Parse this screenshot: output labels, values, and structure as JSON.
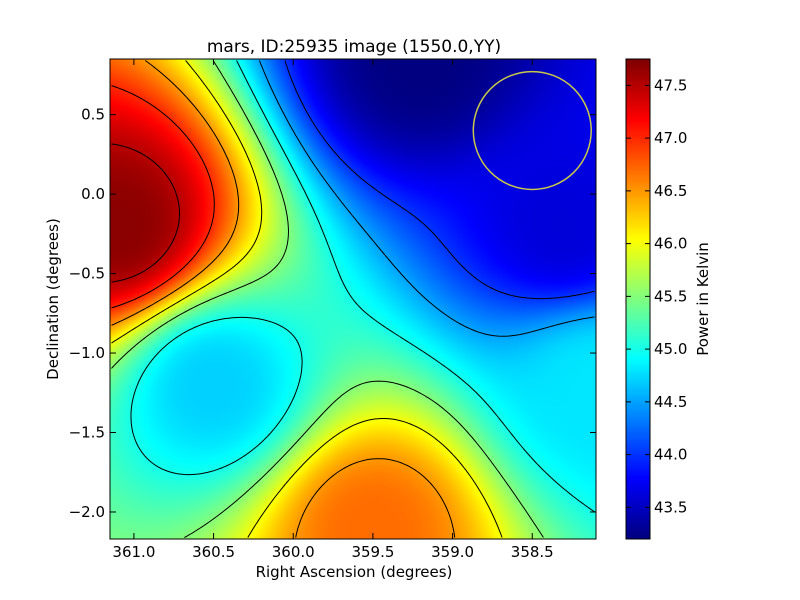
{
  "chart_data": {
    "type": "heatmap",
    "title": "mars, ID:25935 image (1550.0,YY)",
    "xlabel": "Right Ascension (degrees)",
    "ylabel": "Declination (degrees)",
    "xlim": [
      361.15,
      358.1
    ],
    "ylim": [
      -2.17,
      0.85
    ],
    "xticks": [
      361.0,
      360.5,
      360.0,
      359.5,
      359.0,
      358.5
    ],
    "xtick_labels": [
      "361.0",
      "360.5",
      "360.0",
      "359.5",
      "359.0",
      "358.5"
    ],
    "yticks": [
      0.5,
      0.0,
      -0.5,
      -1.0,
      -1.5,
      -2.0
    ],
    "ytick_labels": [
      "0.5",
      "0.0",
      "−0.5",
      "−1.0",
      "−1.5",
      "−2.0"
    ],
    "colorbar": {
      "label": "Power in Kelvin",
      "range": [
        43.2,
        47.75
      ],
      "ticks": [
        43.5,
        44.0,
        44.5,
        45.0,
        45.5,
        46.0,
        46.5,
        47.0,
        47.5
      ],
      "tick_labels": [
        "43.5",
        "44.0",
        "44.5",
        "45.0",
        "45.5",
        "46.0",
        "46.5",
        "47.0",
        "47.5"
      ],
      "colormap": "jet"
    },
    "field_peaks": [
      {
        "ra": 361.1,
        "dec": -0.2,
        "power": 47.7
      },
      {
        "ra": 359.2,
        "dec": 0.85,
        "power": 43.2
      },
      {
        "ra": 359.5,
        "dec": -2.1,
        "power": 46.7
      },
      {
        "ra": 360.5,
        "dec": -1.2,
        "power": 44.7
      },
      {
        "ra": 358.3,
        "dec": -0.2,
        "power": 43.6
      },
      {
        "ra": 358.1,
        "dec": -1.2,
        "power": 44.8
      }
    ],
    "contour_levels": [
      44.0,
      44.5,
      45.0,
      45.5,
      46.0,
      46.5,
      47.0,
      47.5
    ],
    "beam_circle": {
      "ra": 358.5,
      "dec": 0.4,
      "radius_deg": 0.37,
      "color": "#c8c84a"
    },
    "grid": false
  }
}
